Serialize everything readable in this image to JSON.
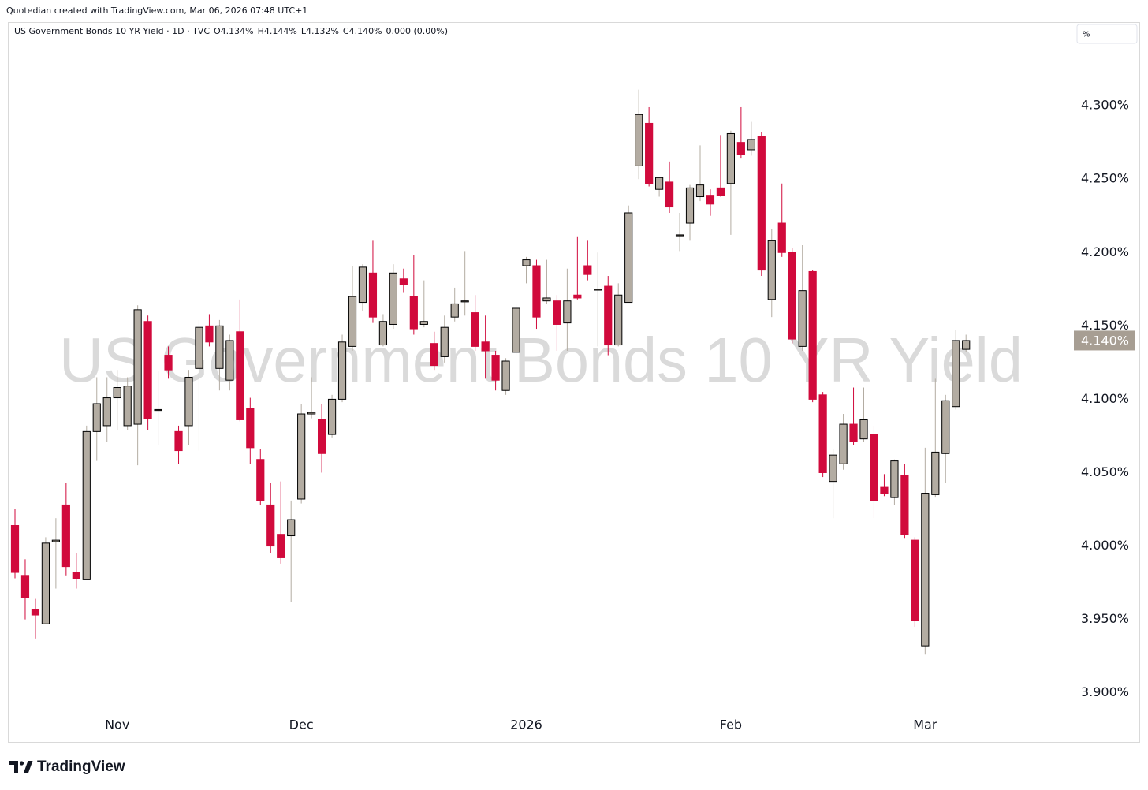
{
  "header": {
    "credit": "Quotedian created with TradingView.com, Mar 06, 2026 07:48 UTC+1",
    "symbol": "US Government Bonds 10 YR Yield · 1D · TVC",
    "ohlc": [
      "O4.134%",
      "H4.144%",
      "L4.132%",
      "C4.140%",
      "0.000 (0.00%)"
    ],
    "scale_button": "%"
  },
  "footer": {
    "logo": "TradingView"
  },
  "chart_data": {
    "type": "candlestick",
    "watermark": "US Government Bonds 10 YR Yield",
    "categories": [
      null,
      null,
      null,
      null,
      null,
      null,
      null,
      null,
      null,
      null,
      "Nov",
      null,
      null,
      null,
      null,
      null,
      null,
      null,
      null,
      null,
      null,
      null,
      null,
      null,
      null,
      null,
      null,
      null,
      "Dec",
      null,
      null,
      null,
      null,
      null,
      null,
      null,
      null,
      null,
      null,
      null,
      null,
      null,
      null,
      null,
      null,
      null,
      null,
      null,
      null,
      null,
      "2026",
      null,
      null,
      null,
      null,
      null,
      null,
      null,
      null,
      null,
      null,
      null,
      null,
      null,
      null,
      null,
      null,
      null,
      null,
      null,
      "Feb",
      null,
      null,
      null,
      null,
      null,
      null,
      null,
      null,
      null,
      null,
      null,
      null,
      null,
      null,
      null,
      null,
      null,
      null,
      "Mar",
      null,
      null,
      null,
      null
    ],
    "open": [
      4.014,
      3.98,
      3.957,
      3.947,
      4.003,
      4.028,
      3.982,
      3.977,
      4.078,
      4.082,
      4.101,
      4.082,
      4.083,
      4.153,
      4.093,
      4.13,
      4.078,
      4.082,
      4.121,
      4.15,
      4.121,
      4.113,
      4.146,
      4.094,
      4.059,
      4.028,
      4.008,
      4.007,
      4.032,
      4.09,
      4.086,
      4.076,
      4.1,
      4.136,
      4.166,
      4.186,
      4.137,
      4.151,
      4.182,
      4.17,
      4.151,
      4.138,
      4.129,
      4.156,
      4.167,
      4.159,
      4.139,
      4.13,
      4.106,
      4.132,
      4.191,
      4.191,
      4.167,
      4.167,
      4.152,
      4.171,
      4.191,
      4.175,
      4.177,
      4.137,
      4.166,
      4.259,
      4.288,
      4.243,
      4.248,
      4.212,
      4.22,
      4.238,
      4.239,
      4.244,
      4.247,
      4.275,
      4.27,
      4.279,
      4.168,
      4.22,
      4.2,
      4.136,
      4.187,
      4.103,
      4.044,
      4.056,
      4.083,
      4.073,
      4.076,
      4.04,
      4.033,
      4.048,
      4.004,
      3.932,
      4.035,
      4.063,
      4.095,
      4.134
    ],
    "high": [
      4.025,
      3.991,
      3.964,
      4.006,
      4.019,
      4.043,
      3.995,
      4.082,
      4.115,
      4.115,
      4.12,
      4.115,
      4.164,
      4.157,
      4.119,
      4.136,
      4.082,
      4.12,
      4.154,
      4.158,
      4.154,
      4.144,
      4.168,
      4.101,
      4.066,
      4.043,
      4.044,
      4.031,
      4.097,
      4.115,
      4.097,
      4.103,
      4.144,
      4.191,
      4.192,
      4.208,
      4.158,
      4.192,
      4.189,
      4.198,
      4.181,
      4.146,
      4.157,
      4.176,
      4.201,
      4.171,
      4.157,
      4.133,
      4.128,
      4.165,
      4.197,
      4.195,
      4.195,
      4.171,
      4.189,
      4.211,
      4.208,
      4.2,
      4.184,
      4.179,
      4.232,
      4.311,
      4.299,
      4.251,
      4.262,
      4.227,
      4.246,
      4.273,
      4.243,
      4.28,
      4.283,
      4.299,
      4.289,
      4.282,
      4.216,
      4.247,
      4.203,
      4.205,
      4.188,
      4.105,
      4.066,
      4.09,
      4.108,
      4.108,
      4.082,
      4.049,
      4.059,
      4.056,
      4.006,
      4.067,
      4.114,
      4.103,
      4.147,
      4.144
    ],
    "low": [
      3.978,
      3.95,
      3.937,
      3.947,
      3.971,
      3.98,
      3.971,
      3.977,
      4.058,
      4.071,
      4.079,
      4.079,
      4.055,
      4.079,
      4.069,
      4.114,
      4.056,
      4.069,
      4.065,
      4.136,
      4.106,
      4.106,
      4.085,
      4.056,
      4.028,
      3.995,
      3.988,
      3.962,
      4.029,
      4.087,
      4.05,
      4.074,
      4.098,
      4.133,
      4.16,
      4.152,
      4.136,
      4.148,
      4.173,
      4.144,
      4.149,
      4.12,
      4.125,
      4.153,
      4.157,
      4.133,
      4.114,
      4.106,
      4.103,
      4.13,
      4.179,
      4.148,
      4.165,
      4.133,
      4.133,
      4.168,
      4.181,
      4.136,
      4.13,
      4.136,
      4.166,
      4.25,
      4.245,
      4.238,
      4.227,
      4.201,
      4.208,
      4.235,
      4.225,
      4.238,
      4.212,
      4.264,
      4.266,
      4.184,
      4.156,
      4.197,
      4.138,
      4.133,
      4.098,
      4.047,
      4.019,
      4.052,
      4.069,
      4.071,
      4.019,
      4.034,
      4.028,
      4.005,
      3.945,
      3.926,
      4.033,
      4.043,
      4.093,
      4.132
    ],
    "close": [
      3.982,
      3.965,
      3.953,
      4.002,
      4.004,
      3.986,
      3.978,
      4.078,
      4.097,
      4.101,
      4.108,
      4.109,
      4.161,
      4.087,
      4.093,
      4.12,
      4.065,
      4.115,
      4.149,
      4.139,
      4.15,
      4.14,
      4.086,
      4.067,
      4.031,
      4.0,
      3.992,
      4.018,
      4.09,
      4.091,
      4.063,
      4.1,
      4.139,
      4.17,
      4.19,
      4.156,
      4.153,
      4.186,
      4.178,
      4.148,
      4.153,
      4.123,
      4.149,
      4.165,
      4.167,
      4.136,
      4.133,
      4.113,
      4.126,
      4.162,
      4.195,
      4.156,
      4.169,
      4.151,
      4.167,
      4.169,
      4.185,
      4.175,
      4.137,
      4.171,
      4.227,
      4.294,
      4.247,
      4.251,
      4.231,
      4.212,
      4.244,
      4.246,
      4.233,
      4.239,
      4.281,
      4.267,
      4.277,
      4.188,
      4.208,
      4.2,
      4.141,
      4.174,
      4.1,
      4.05,
      4.062,
      4.083,
      4.071,
      4.086,
      4.031,
      4.036,
      4.058,
      4.008,
      3.949,
      4.036,
      4.064,
      4.099,
      4.14,
      4.14
    ],
    "up_color": "#b3aca2",
    "down_color": "#d10a3c",
    "ylim": [
      3.866,
      4.357
    ],
    "yticks": [
      {
        "value": 3.9,
        "label": "3.900%"
      },
      {
        "value": 3.95,
        "label": "3.950%"
      },
      {
        "value": 4.0,
        "label": "4.000%"
      },
      {
        "value": 4.05,
        "label": "4.050%"
      },
      {
        "value": 4.1,
        "label": "4.100%"
      },
      {
        "value": 4.15,
        "label": "4.150%"
      },
      {
        "value": 4.2,
        "label": "4.200%"
      },
      {
        "value": 4.25,
        "label": "4.250%"
      },
      {
        "value": 4.3,
        "label": "4.300%"
      }
    ],
    "last_price": {
      "value": 4.14,
      "label": "4.140%",
      "color": "#a79e93"
    }
  }
}
